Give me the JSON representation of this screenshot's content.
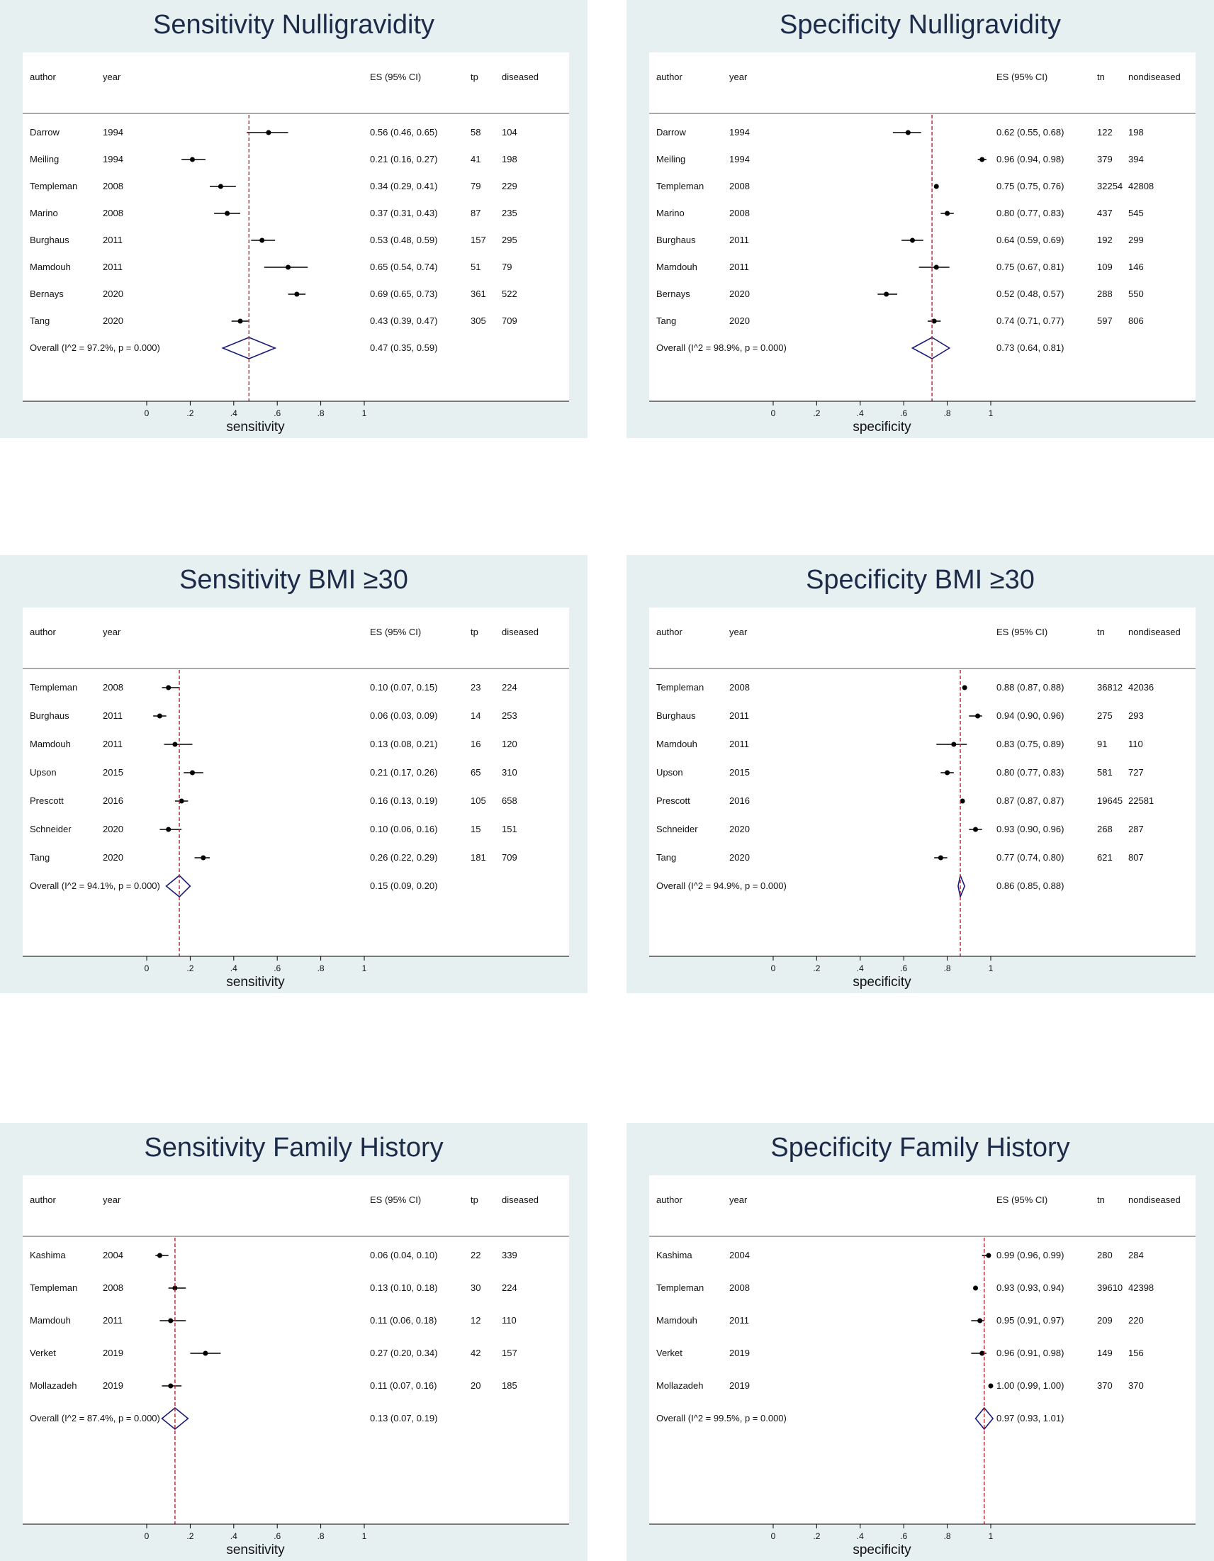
{
  "chart_data": [
    {
      "type": "forest",
      "title": "Sensitivity Nulligravidity",
      "xlabel": "sensitivity",
      "xlim": [
        0,
        1
      ],
      "ticks": [
        "0",
        ".2",
        ".4",
        ".6",
        ".8",
        "1"
      ],
      "columns": [
        "author",
        "year",
        "ES (95% CI)",
        "tp",
        "diseased"
      ],
      "studies": [
        {
          "author": "Darrow",
          "year": "1994",
          "es": 0.56,
          "lo": 0.46,
          "hi": 0.65,
          "es_text": "0.56 (0.46, 0.65)",
          "count": "58",
          "total": "104"
        },
        {
          "author": "Meiling",
          "year": "1994",
          "es": 0.21,
          "lo": 0.16,
          "hi": 0.27,
          "es_text": "0.21 (0.16, 0.27)",
          "count": "41",
          "total": "198"
        },
        {
          "author": "Templeman",
          "year": "2008",
          "es": 0.34,
          "lo": 0.29,
          "hi": 0.41,
          "es_text": "0.34 (0.29, 0.41)",
          "count": "79",
          "total": "229"
        },
        {
          "author": "Marino",
          "year": "2008",
          "es": 0.37,
          "lo": 0.31,
          "hi": 0.43,
          "es_text": "0.37 (0.31, 0.43)",
          "count": "87",
          "total": "235"
        },
        {
          "author": "Burghaus",
          "year": "2011",
          "es": 0.53,
          "lo": 0.48,
          "hi": 0.59,
          "es_text": "0.53 (0.48, 0.59)",
          "count": "157",
          "total": "295"
        },
        {
          "author": "Mamdouh",
          "year": "2011",
          "es": 0.65,
          "lo": 0.54,
          "hi": 0.74,
          "es_text": "0.65 (0.54, 0.74)",
          "count": "51",
          "total": "79"
        },
        {
          "author": "Bernays",
          "year": "2020",
          "es": 0.69,
          "lo": 0.65,
          "hi": 0.73,
          "es_text": "0.69 (0.65, 0.73)",
          "count": "361",
          "total": "522"
        },
        {
          "author": "Tang",
          "year": "2020",
          "es": 0.43,
          "lo": 0.39,
          "hi": 0.47,
          "es_text": "0.43 (0.39, 0.47)",
          "count": "305",
          "total": "709"
        }
      ],
      "overall": {
        "label": "Overall  (I^2 = 97.2%, p = 0.000)",
        "es": 0.47,
        "lo": 0.35,
        "hi": 0.59,
        "es_text": "0.47 (0.35, 0.59)"
      }
    },
    {
      "type": "forest",
      "title": "Specificity Nulligravidity",
      "xlabel": "specificity",
      "xlim": [
        0,
        1
      ],
      "ticks": [
        "0",
        ".2",
        ".4",
        ".6",
        ".8",
        "1"
      ],
      "columns": [
        "author",
        "year",
        "ES (95% CI)",
        "tn",
        "nondiseased"
      ],
      "studies": [
        {
          "author": "Darrow",
          "year": "1994",
          "es": 0.62,
          "lo": 0.55,
          "hi": 0.68,
          "es_text": "0.62 (0.55, 0.68)",
          "count": "122",
          "total": "198"
        },
        {
          "author": "Meiling",
          "year": "1994",
          "es": 0.96,
          "lo": 0.94,
          "hi": 0.98,
          "es_text": "0.96 (0.94, 0.98)",
          "count": "379",
          "total": "394"
        },
        {
          "author": "Templeman",
          "year": "2008",
          "es": 0.75,
          "lo": 0.75,
          "hi": 0.76,
          "es_text": "0.75 (0.75, 0.76)",
          "count": "32254",
          "total": "42808"
        },
        {
          "author": "Marino",
          "year": "2008",
          "es": 0.8,
          "lo": 0.77,
          "hi": 0.83,
          "es_text": "0.80 (0.77, 0.83)",
          "count": "437",
          "total": "545"
        },
        {
          "author": "Burghaus",
          "year": "2011",
          "es": 0.64,
          "lo": 0.59,
          "hi": 0.69,
          "es_text": "0.64 (0.59, 0.69)",
          "count": "192",
          "total": "299"
        },
        {
          "author": "Mamdouh",
          "year": "2011",
          "es": 0.75,
          "lo": 0.67,
          "hi": 0.81,
          "es_text": "0.75 (0.67, 0.81)",
          "count": "109",
          "total": "146"
        },
        {
          "author": "Bernays",
          "year": "2020",
          "es": 0.52,
          "lo": 0.48,
          "hi": 0.57,
          "es_text": "0.52 (0.48, 0.57)",
          "count": "288",
          "total": "550"
        },
        {
          "author": "Tang",
          "year": "2020",
          "es": 0.74,
          "lo": 0.71,
          "hi": 0.77,
          "es_text": "0.74 (0.71, 0.77)",
          "count": "597",
          "total": "806"
        }
      ],
      "overall": {
        "label": "Overall  (I^2 = 98.9%, p = 0.000)",
        "es": 0.73,
        "lo": 0.64,
        "hi": 0.81,
        "es_text": "0.73 (0.64, 0.81)"
      }
    },
    {
      "type": "forest",
      "title": "Sensitivity BMI ≥30",
      "xlabel": "sensitivity",
      "xlim": [
        0,
        1
      ],
      "ticks": [
        "0",
        ".2",
        ".4",
        ".6",
        ".8",
        "1"
      ],
      "columns": [
        "author",
        "year",
        "ES (95% CI)",
        "tp",
        "diseased"
      ],
      "studies": [
        {
          "author": "Templeman",
          "year": "2008",
          "es": 0.1,
          "lo": 0.07,
          "hi": 0.15,
          "es_text": "0.10 (0.07, 0.15)",
          "count": "23",
          "total": "224"
        },
        {
          "author": "Burghaus",
          "year": "2011",
          "es": 0.06,
          "lo": 0.03,
          "hi": 0.09,
          "es_text": "0.06 (0.03, 0.09)",
          "count": "14",
          "total": "253"
        },
        {
          "author": "Mamdouh",
          "year": "2011",
          "es": 0.13,
          "lo": 0.08,
          "hi": 0.21,
          "es_text": "0.13 (0.08, 0.21)",
          "count": "16",
          "total": "120"
        },
        {
          "author": "Upson",
          "year": "2015",
          "es": 0.21,
          "lo": 0.17,
          "hi": 0.26,
          "es_text": "0.21 (0.17, 0.26)",
          "count": "65",
          "total": "310"
        },
        {
          "author": "Prescott",
          "year": "2016",
          "es": 0.16,
          "lo": 0.13,
          "hi": 0.19,
          "es_text": "0.16 (0.13, 0.19)",
          "count": "105",
          "total": "658"
        },
        {
          "author": "Schneider",
          "year": "2020",
          "es": 0.1,
          "lo": 0.06,
          "hi": 0.16,
          "es_text": "0.10 (0.06, 0.16)",
          "count": "15",
          "total": "151"
        },
        {
          "author": "Tang",
          "year": "2020",
          "es": 0.26,
          "lo": 0.22,
          "hi": 0.29,
          "es_text": "0.26 (0.22, 0.29)",
          "count": "181",
          "total": "709"
        }
      ],
      "overall": {
        "label": "Overall  (I^2 = 94.1%, p = 0.000)",
        "es": 0.15,
        "lo": 0.09,
        "hi": 0.2,
        "es_text": "0.15 (0.09, 0.20)"
      }
    },
    {
      "type": "forest",
      "title": "Specificity BMI ≥30",
      "xlabel": "specificity",
      "xlim": [
        0,
        1
      ],
      "ticks": [
        "0",
        ".2",
        ".4",
        ".6",
        ".8",
        "1"
      ],
      "columns": [
        "author",
        "year",
        "ES (95% CI)",
        "tn",
        "nondiseased"
      ],
      "studies": [
        {
          "author": "Templeman",
          "year": "2008",
          "es": 0.88,
          "lo": 0.87,
          "hi": 0.88,
          "es_text": "0.88 (0.87, 0.88)",
          "count": "36812",
          "total": "42036"
        },
        {
          "author": "Burghaus",
          "year": "2011",
          "es": 0.94,
          "lo": 0.9,
          "hi": 0.96,
          "es_text": "0.94 (0.90, 0.96)",
          "count": "275",
          "total": "293"
        },
        {
          "author": "Mamdouh",
          "year": "2011",
          "es": 0.83,
          "lo": 0.75,
          "hi": 0.89,
          "es_text": "0.83 (0.75, 0.89)",
          "count": "91",
          "total": "110"
        },
        {
          "author": "Upson",
          "year": "2015",
          "es": 0.8,
          "lo": 0.77,
          "hi": 0.83,
          "es_text": "0.80 (0.77, 0.83)",
          "count": "581",
          "total": "727"
        },
        {
          "author": "Prescott",
          "year": "2016",
          "es": 0.87,
          "lo": 0.87,
          "hi": 0.87,
          "es_text": "0.87 (0.87, 0.87)",
          "count": "19645",
          "total": "22581"
        },
        {
          "author": "Schneider",
          "year": "2020",
          "es": 0.93,
          "lo": 0.9,
          "hi": 0.96,
          "es_text": "0.93 (0.90, 0.96)",
          "count": "268",
          "total": "287"
        },
        {
          "author": "Tang",
          "year": "2020",
          "es": 0.77,
          "lo": 0.74,
          "hi": 0.8,
          "es_text": "0.77 (0.74, 0.80)",
          "count": "621",
          "total": "807"
        }
      ],
      "overall": {
        "label": "Overall  (I^2 = 94.9%, p = 0.000)",
        "es": 0.86,
        "lo": 0.85,
        "hi": 0.88,
        "es_text": "0.86 (0.85, 0.88)"
      }
    },
    {
      "type": "forest",
      "title": "Sensitivity Family History",
      "xlabel": "sensitivity",
      "xlim": [
        0,
        1
      ],
      "ticks": [
        "0",
        ".2",
        ".4",
        ".6",
        ".8",
        "1"
      ],
      "columns": [
        "author",
        "year",
        "ES (95% CI)",
        "tp",
        "diseased"
      ],
      "studies": [
        {
          "author": "Kashima",
          "year": "2004",
          "es": 0.06,
          "lo": 0.04,
          "hi": 0.1,
          "es_text": "0.06 (0.04, 0.10)",
          "count": "22",
          "total": "339"
        },
        {
          "author": "Templeman",
          "year": "2008",
          "es": 0.13,
          "lo": 0.1,
          "hi": 0.18,
          "es_text": "0.13 (0.10, 0.18)",
          "count": "30",
          "total": "224"
        },
        {
          "author": "Mamdouh",
          "year": "2011",
          "es": 0.11,
          "lo": 0.06,
          "hi": 0.18,
          "es_text": "0.11 (0.06, 0.18)",
          "count": "12",
          "total": "110"
        },
        {
          "author": "Verket",
          "year": "2019",
          "es": 0.27,
          "lo": 0.2,
          "hi": 0.34,
          "es_text": "0.27 (0.20, 0.34)",
          "count": "42",
          "total": "157"
        },
        {
          "author": "Mollazadeh",
          "year": "2019",
          "es": 0.11,
          "lo": 0.07,
          "hi": 0.16,
          "es_text": "0.11 (0.07, 0.16)",
          "count": "20",
          "total": "185"
        }
      ],
      "overall": {
        "label": "Overall  (I^2 = 87.4%, p = 0.000)",
        "es": 0.13,
        "lo": 0.07,
        "hi": 0.19,
        "es_text": "0.13 (0.07, 0.19)"
      }
    },
    {
      "type": "forest",
      "title": "Specificity Family History",
      "xlabel": "specificity",
      "xlim": [
        0,
        1
      ],
      "ticks": [
        "0",
        ".2",
        ".4",
        ".6",
        ".8",
        "1"
      ],
      "columns": [
        "author",
        "year",
        "ES (95% CI)",
        "tn",
        "nondiseased"
      ],
      "studies": [
        {
          "author": "Kashima",
          "year": "2004",
          "es": 0.99,
          "lo": 0.96,
          "hi": 0.99,
          "es_text": "0.99 (0.96, 0.99)",
          "count": "280",
          "total": "284"
        },
        {
          "author": "Templeman",
          "year": "2008",
          "es": 0.93,
          "lo": 0.93,
          "hi": 0.94,
          "es_text": "0.93 (0.93, 0.94)",
          "count": "39610",
          "total": "42398"
        },
        {
          "author": "Mamdouh",
          "year": "2011",
          "es": 0.95,
          "lo": 0.91,
          "hi": 0.97,
          "es_text": "0.95 (0.91, 0.97)",
          "count": "209",
          "total": "220"
        },
        {
          "author": "Verket",
          "year": "2019",
          "es": 0.96,
          "lo": 0.91,
          "hi": 0.98,
          "es_text": "0.96 (0.91, 0.98)",
          "count": "149",
          "total": "156"
        },
        {
          "author": "Mollazadeh",
          "year": "2019",
          "es": 1.0,
          "lo": 0.99,
          "hi": 1.0,
          "es_text": "1.00 (0.99, 1.00)",
          "count": "370",
          "total": "370"
        }
      ],
      "overall": {
        "label": "Overall  (I^2 = 99.5%, p = 0.000)",
        "es": 0.97,
        "lo": 0.93,
        "hi": 1.01,
        "es_text": "0.97 (0.93, 1.01)"
      }
    }
  ]
}
